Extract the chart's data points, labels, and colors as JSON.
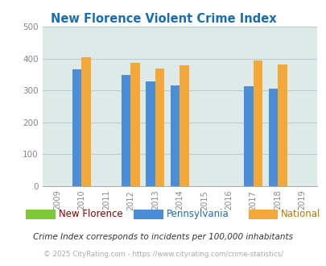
{
  "title": "New Florence Violent Crime Index",
  "years": [
    2009,
    2010,
    2011,
    2012,
    2013,
    2014,
    2015,
    2016,
    2017,
    2018,
    2019
  ],
  "bar_years": [
    2010,
    2012,
    2013,
    2014,
    2017,
    2018
  ],
  "pennsylvania": [
    367,
    349,
    329,
    316,
    312,
    306
  ],
  "national": [
    405,
    387,
    368,
    378,
    393,
    381
  ],
  "new_florence": [],
  "pa_color": "#4b8ed8",
  "national_color": "#f5a83a",
  "nf_color": "#7ec83a",
  "bg_color": "#ddeae8",
  "title_color": "#1a6db5",
  "ylim": [
    0,
    500
  ],
  "yticks": [
    0,
    100,
    200,
    300,
    400,
    500
  ],
  "grid_color": "#b8cccb",
  "legend_nf_label_color": "#8b0000",
  "legend_pa_label_color": "#1a6db5",
  "legend_nat_label_color": "#b87800",
  "legend_labels": [
    "New Florence",
    "Pennsylvania",
    "National"
  ],
  "footer_note": "Crime Index corresponds to incidents per 100,000 inhabitants",
  "footer_copy": "© 2025 CityRating.com - https://www.cityrating.com/crime-statistics/",
  "bar_width": 0.38
}
